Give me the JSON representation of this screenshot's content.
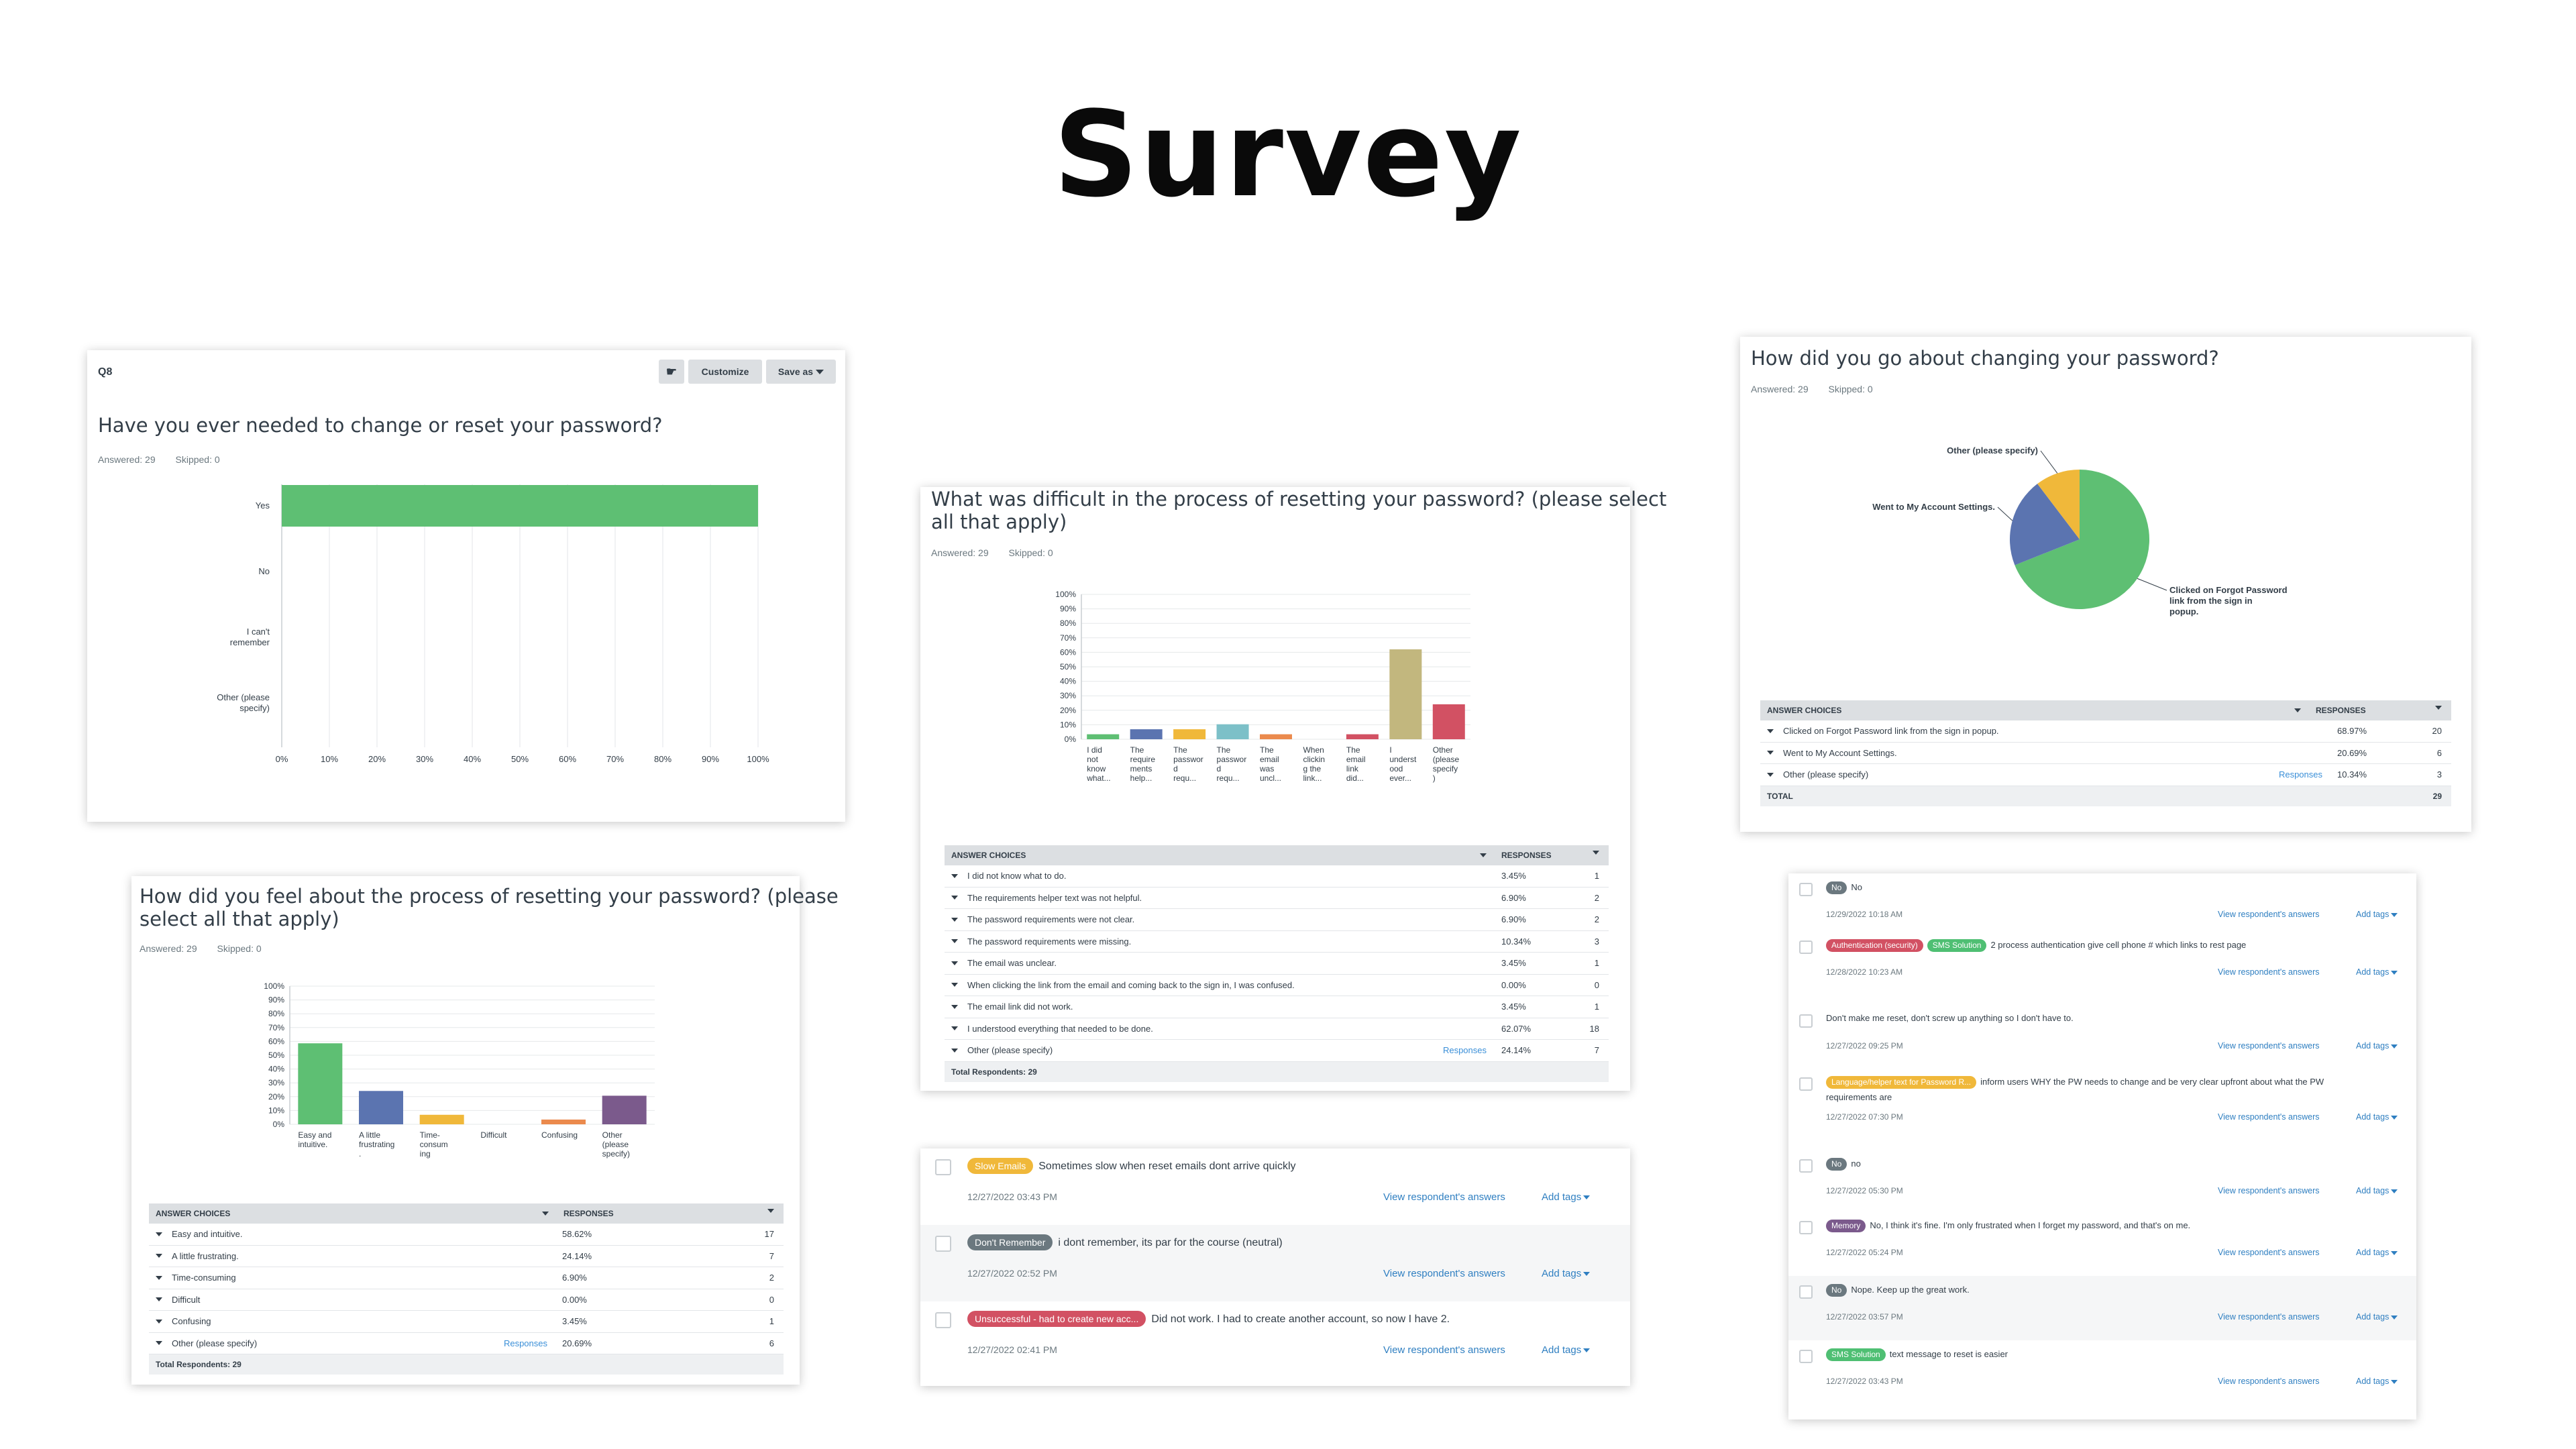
{
  "page_title": "Survey",
  "q8": {
    "label": "Q8",
    "customize": "Customize",
    "save_as": "Save as",
    "title": "Have you ever needed to change or reset your password?",
    "answered": "Answered: 29",
    "skipped": "Skipped: 0"
  },
  "q_difficult": {
    "title_line1": "What was difficult in the process of resetting your password? (please select",
    "title_line2": "all that apply)",
    "answered": "Answered: 29",
    "skipped": "Skipped: 0",
    "table": {
      "header_choices": "ANSWER CHOICES",
      "header_responses": "RESPONSES",
      "rows": [
        {
          "choice": "I did not know what to do.",
          "pct": "3.45%",
          "count": "1"
        },
        {
          "choice": "The requirements helper text was not helpful.",
          "pct": "6.90%",
          "count": "2"
        },
        {
          "choice": "The password requirements were not clear.",
          "pct": "6.90%",
          "count": "2"
        },
        {
          "choice": "The password requirements were missing.",
          "pct": "10.34%",
          "count": "3"
        },
        {
          "choice": "The email was unclear.",
          "pct": "3.45%",
          "count": "1"
        },
        {
          "choice": "When clicking the link from the email and coming back to the sign in, I was confused.",
          "pct": "0.00%",
          "count": "0"
        },
        {
          "choice": "The email link did not work.",
          "pct": "3.45%",
          "count": "1"
        },
        {
          "choice": "I understood everything that needed to be done.",
          "pct": "62.07%",
          "count": "18"
        },
        {
          "choice": "Other (please specify)",
          "pct": "24.14%",
          "count": "7",
          "link": "Responses"
        }
      ],
      "total": "Total Respondents: 29"
    }
  },
  "q_changing": {
    "title": "How did you go about changing your password?",
    "answered": "Answered: 29",
    "skipped": "Skipped: 0",
    "table": {
      "header_choices": "ANSWER CHOICES",
      "header_responses": "RESPONSES",
      "rows": [
        {
          "choice": "Clicked on Forgot Password link from the sign in popup.",
          "pct": "68.97%",
          "count": "20"
        },
        {
          "choice": "Went to My Account Settings.",
          "pct": "20.69%",
          "count": "6"
        },
        {
          "choice": "Other (please specify)",
          "pct": "10.34%",
          "count": "3",
          "link": "Responses"
        }
      ],
      "total_label": "TOTAL",
      "total_count": "29"
    }
  },
  "q_feel": {
    "title_line1": "How did you feel about the process of resetting your password? (please",
    "title_line2": "select all that apply)",
    "answered": "Answered: 29",
    "skipped": "Skipped: 0",
    "table": {
      "header_choices": "ANSWER CHOICES",
      "header_responses": "RESPONSES",
      "rows": [
        {
          "choice": "Easy and intuitive.",
          "pct": "58.62%",
          "count": "17"
        },
        {
          "choice": "A little frustrating.",
          "pct": "24.14%",
          "count": "7"
        },
        {
          "choice": "Time-consuming",
          "pct": "6.90%",
          "count": "2"
        },
        {
          "choice": "Difficult",
          "pct": "0.00%",
          "count": "0"
        },
        {
          "choice": "Confusing",
          "pct": "3.45%",
          "count": "1"
        },
        {
          "choice": "Other (please specify)",
          "pct": "20.69%",
          "count": "6",
          "link": "Responses"
        }
      ],
      "total": "Total Respondents: 29"
    }
  },
  "responses_mid": {
    "view_label": "View respondent's answers",
    "add_tags": "Add tags",
    "items": [
      {
        "tag": "Slow Emails",
        "tag_color": "#f0b83a",
        "text": "Sometimes slow when reset emails dont arrive quickly",
        "date": "12/27/2022 03:43 PM"
      },
      {
        "tag": "Don't Remember",
        "tag_color": "#6b787f",
        "text": "i dont remember, its par for the course (neutral)",
        "date": "12/27/2022 02:52 PM"
      },
      {
        "tag": "Unsuccessful - had to create new acc...",
        "tag_color": "#d25163",
        "text": "Did not work. I had to create another account, so now I have 2.",
        "date": "12/27/2022 02:41 PM"
      }
    ]
  },
  "responses_right": {
    "view_label": "View respondent's answers",
    "add_tags": "Add tags",
    "items": [
      {
        "tags": [
          {
            "label": "No",
            "color": "#6b787f"
          }
        ],
        "text": "No",
        "date": "12/29/2022 10:18 AM"
      },
      {
        "tags": [
          {
            "label": "Authentication (security)",
            "color": "#d25163"
          },
          {
            "label": "SMS Solution",
            "color": "#4fbf73"
          }
        ],
        "text": "2 process authentication give cell phone # which links to rest page",
        "date": "12/28/2022 10:23 AM"
      },
      {
        "tags": [],
        "text": "Don't make me reset, don't screw up anything so I don't have to.",
        "date": "12/27/2022 09:25 PM"
      },
      {
        "tags": [
          {
            "label": "Language/helper text for Password R...",
            "color": "#f0b83a"
          }
        ],
        "text": "inform users WHY the PW needs to change and be very clear upfront about what the PW",
        "text2": "requirements are",
        "date": "12/27/2022 07:30 PM"
      },
      {
        "tags": [
          {
            "label": "No",
            "color": "#6b787f"
          }
        ],
        "text": "no",
        "date": "12/27/2022 05:30 PM"
      },
      {
        "tags": [
          {
            "label": "Memory",
            "color": "#7b5a8c"
          }
        ],
        "text": "No, I think it's fine. I'm only frustrated when I forget my password, and that's on me.",
        "date": "12/27/2022 05:24 PM"
      },
      {
        "tags": [
          {
            "label": "No",
            "color": "#6b787f"
          }
        ],
        "text": "Nope. Keep up the great work.",
        "date": "12/27/2022 03:57 PM"
      },
      {
        "tags": [
          {
            "label": "SMS Solution",
            "color": "#4fbf73"
          }
        ],
        "text": "text message to reset is easier",
        "date": "12/27/2022 03:43 PM"
      }
    ]
  },
  "chart_data": [
    {
      "type": "bar",
      "orientation": "horizontal",
      "categories": [
        "Yes",
        "No",
        "I can't remember",
        "Other (please specify)"
      ],
      "values": [
        100,
        0,
        0,
        0
      ],
      "xlim": [
        0,
        100
      ],
      "ticks": [
        "0%",
        "10%",
        "20%",
        "30%",
        "40%",
        "50%",
        "60%",
        "70%",
        "80%",
        "90%",
        "100%"
      ],
      "color": "#5ebf73"
    },
    {
      "type": "bar",
      "categories": [
        [
          "I did",
          "not",
          "know",
          "what..."
        ],
        [
          "The",
          "require",
          "ments",
          "help..."
        ],
        [
          "The",
          "passwor",
          "d",
          "requ..."
        ],
        [
          "The",
          "passwor",
          "d",
          "requ..."
        ],
        [
          "The",
          "email",
          "was",
          "uncl..."
        ],
        [
          "When",
          "clickin",
          "g the",
          "link..."
        ],
        [
          "The",
          "email",
          "link",
          "did..."
        ],
        [
          "I",
          "underst",
          "ood",
          "ever..."
        ],
        [
          "Other",
          "(please",
          "specify",
          ")"
        ]
      ],
      "values": [
        3.45,
        6.9,
        6.9,
        10.34,
        3.45,
        0.0,
        3.45,
        62.07,
        24.14
      ],
      "colors": [
        "#5ebf73",
        "#5b74b0",
        "#f0b83a",
        "#7cc0c8",
        "#eb8a4d",
        "#9aa4ac",
        "#d25163",
        "#c2b77e",
        "#d25163"
      ],
      "ylim": [
        0,
        100
      ],
      "ticks": [
        "0%",
        "10%",
        "20%",
        "30%",
        "40%",
        "50%",
        "60%",
        "70%",
        "80%",
        "90%",
        "100%"
      ]
    },
    {
      "type": "pie",
      "labels": [
        "Clicked on Forgot Password link from the sign in popup.",
        "Went to My Account Settings.",
        "Other (please specify)"
      ],
      "callouts": [
        [
          "Clicked on Forgot Password",
          "link from the sign in",
          "popup."
        ],
        [
          "Went to My Account Settings."
        ],
        [
          "Other (please specify)"
        ]
      ],
      "values": [
        68.97,
        20.69,
        10.34
      ],
      "colors": [
        "#5ebf73",
        "#5b74b0",
        "#f0b83a"
      ]
    },
    {
      "type": "bar",
      "categories": [
        [
          "Easy and",
          "intuitive."
        ],
        [
          "A little",
          "frustrating",
          "."
        ],
        [
          "Time-",
          "consum",
          "ing"
        ],
        [
          "Difficult"
        ],
        [
          "Confusing"
        ],
        [
          "Other",
          "(please",
          "specify)"
        ]
      ],
      "values": [
        58.62,
        24.14,
        6.9,
        0.0,
        3.45,
        20.69
      ],
      "colors": [
        "#5ebf73",
        "#5b74b0",
        "#f0b83a",
        "#7cc0c8",
        "#eb8a4d",
        "#7b5a8c"
      ],
      "ylim": [
        0,
        100
      ],
      "ticks": [
        "0%",
        "10%",
        "20%",
        "30%",
        "40%",
        "50%",
        "60%",
        "70%",
        "80%",
        "90%",
        "100%"
      ]
    }
  ]
}
